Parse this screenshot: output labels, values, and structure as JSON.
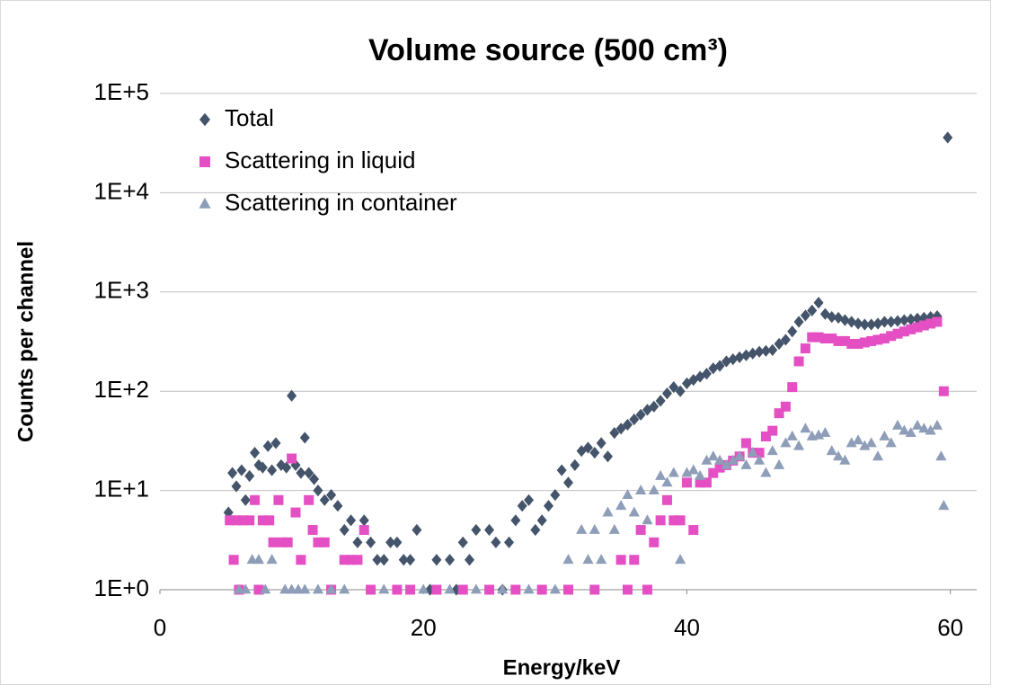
{
  "chart_data": {
    "type": "scatter",
    "title": "Volume source  (500 cm³)",
    "x_label": "Energy/keV",
    "y_label": "Counts per channel",
    "xlim": [
      0,
      62
    ],
    "xticks": [
      0,
      20,
      40,
      60
    ],
    "ylim": [
      1,
      100000
    ],
    "log_y": true,
    "grid": true,
    "legend": "upper left",
    "yticks": [
      {
        "value": 1,
        "label": "1E+0"
      },
      {
        "value": 10,
        "label": "1E+1"
      },
      {
        "value": 100,
        "label": "1E+2"
      },
      {
        "value": 1000,
        "label": "1E+3"
      },
      {
        "value": 10000,
        "label": "1E+4"
      },
      {
        "value": 100000,
        "label": "1E+5"
      }
    ],
    "series": [
      {
        "name": "Total",
        "color": "#44546a",
        "marker": "diamond",
        "x": [
          5.2,
          5.5,
          5.8,
          6.2,
          6.5,
          6.8,
          7.2,
          7.5,
          7.8,
          8.2,
          8.5,
          8.8,
          9.2,
          9.6,
          10,
          10.3,
          10.7,
          11,
          11.3,
          11.7,
          12,
          12.5,
          13,
          13.5,
          14,
          14.5,
          15,
          15.5,
          16,
          16.5,
          17,
          17.5,
          18,
          18.5,
          19,
          19.5,
          20.5,
          21,
          22,
          22.5,
          23,
          23.5,
          24,
          25,
          25.5,
          26,
          26.5,
          27,
          27.5,
          28,
          28.5,
          29,
          29.5,
          30,
          30.5,
          31,
          31.5,
          32,
          32.5,
          33,
          33.5,
          34,
          34.5,
          35,
          35.5,
          36,
          36.5,
          37,
          37.5,
          38,
          38.5,
          39,
          39.5,
          40,
          40.5,
          41,
          41.5,
          42,
          42.5,
          43,
          43.5,
          44,
          44.5,
          45,
          45.5,
          46,
          46.5,
          47,
          47.5,
          48,
          48.5,
          49,
          49.5,
          50,
          50.5,
          51,
          51.5,
          52,
          52.5,
          53,
          53.5,
          54,
          54.5,
          55,
          55.5,
          56,
          56.5,
          57,
          57.5,
          58,
          58.5,
          59,
          59.8
        ],
        "values": [
          6,
          15,
          11,
          16,
          8,
          14,
          24,
          18,
          17,
          28,
          16,
          30,
          18,
          17,
          90,
          18,
          15,
          34,
          15,
          13,
          10,
          8,
          9,
          7,
          4,
          5,
          3,
          5,
          3,
          2,
          2,
          3,
          3,
          2,
          2,
          4,
          1,
          2,
          2,
          1,
          3,
          2,
          4,
          4,
          3,
          1,
          3,
          5,
          7,
          8,
          4,
          5,
          7,
          9,
          16,
          12,
          18,
          25,
          27,
          24,
          30,
          22,
          38,
          42,
          46,
          52,
          58,
          65,
          70,
          80,
          95,
          110,
          100,
          120,
          130,
          140,
          150,
          170,
          180,
          200,
          210,
          220,
          230,
          240,
          250,
          255,
          260,
          300,
          330,
          400,
          500,
          580,
          650,
          780,
          600,
          560,
          550,
          520,
          500,
          480,
          470,
          470,
          480,
          500,
          500,
          510,
          520,
          530,
          540,
          550,
          560,
          570,
          36000
        ]
      },
      {
        "name": "Scattering in liquid",
        "color": "#e450c4",
        "marker": "square",
        "x": [
          5.3,
          5.6,
          5.8,
          6,
          6.3,
          6.8,
          7.2,
          7.5,
          7.8,
          8.3,
          8.6,
          9,
          9.3,
          9.7,
          10,
          10.3,
          10.7,
          11.3,
          11.6,
          12,
          12.5,
          13,
          14,
          14.5,
          15,
          15.5,
          16,
          18,
          19,
          21,
          23,
          25,
          27,
          29,
          31,
          33,
          35,
          35.5,
          36,
          36.5,
          37,
          37.5,
          38,
          38.5,
          39,
          39.5,
          40,
          40.5,
          41,
          41.5,
          42,
          42.5,
          43,
          43.5,
          44,
          44.5,
          45,
          45.5,
          46,
          46.5,
          47,
          47.5,
          48,
          48.5,
          49,
          49.5,
          50,
          50.5,
          51,
          51.5,
          52,
          52.5,
          53,
          53.5,
          54,
          54.5,
          55,
          55.5,
          56,
          56.5,
          57,
          57.5,
          58,
          58.5,
          59,
          59.5
        ],
        "values": [
          5,
          2,
          5,
          1,
          5,
          5,
          8,
          1,
          5,
          5,
          3,
          8,
          3,
          3,
          21,
          6,
          2,
          8,
          4,
          3,
          3,
          1,
          2,
          2,
          2,
          4,
          1,
          1,
          1,
          1,
          1,
          1,
          1,
          1,
          1,
          1,
          2,
          1,
          2,
          4,
          1,
          3,
          5,
          8,
          5,
          5,
          12,
          4,
          12,
          12,
          15,
          17,
          18,
          20,
          22,
          30,
          24,
          24,
          35,
          40,
          60,
          70,
          110,
          200,
          270,
          350,
          350,
          340,
          340,
          320,
          320,
          300,
          300,
          310,
          320,
          330,
          340,
          360,
          380,
          400,
          420,
          440,
          460,
          480,
          500,
          100
        ]
      },
      {
        "name": "Scattering in container",
        "color": "#8e9db8",
        "marker": "triangle",
        "x": [
          6,
          6.5,
          7,
          7.5,
          8,
          8.5,
          9.5,
          10,
          10.5,
          11,
          12,
          13,
          14,
          17,
          20,
          22,
          24,
          26,
          28,
          30,
          31,
          32,
          32.5,
          33,
          33.5,
          34,
          34.5,
          35,
          35.5,
          36,
          36.5,
          37,
          37.5,
          38,
          38.5,
          39,
          39.5,
          40,
          40.5,
          41,
          41.5,
          42,
          42.5,
          43,
          43.5,
          44,
          44.5,
          45,
          45.5,
          46,
          46.5,
          47,
          47.5,
          48,
          48.5,
          49,
          49.5,
          50,
          50.5,
          51,
          51.5,
          52,
          52.5,
          53,
          53.5,
          54,
          54.5,
          55,
          55.5,
          56,
          56.5,
          57,
          57.5,
          58,
          58.5,
          59,
          59.3,
          59.5
        ],
        "values": [
          1,
          1,
          2,
          2,
          1,
          2,
          1,
          1,
          1,
          1,
          1,
          1,
          1,
          1,
          1,
          1,
          1,
          1,
          1,
          1,
          2,
          4,
          2,
          4,
          2,
          6,
          4,
          7,
          9,
          6,
          10,
          5,
          10,
          14,
          12,
          15,
          2,
          15,
          16,
          14,
          20,
          22,
          20,
          18,
          20,
          22,
          18,
          24,
          20,
          15,
          25,
          18,
          30,
          35,
          28,
          42,
          35,
          36,
          38,
          25,
          22,
          20,
          30,
          32,
          28,
          30,
          22,
          35,
          30,
          45,
          40,
          38,
          45,
          42,
          40,
          45,
          22,
          7
        ]
      }
    ]
  }
}
